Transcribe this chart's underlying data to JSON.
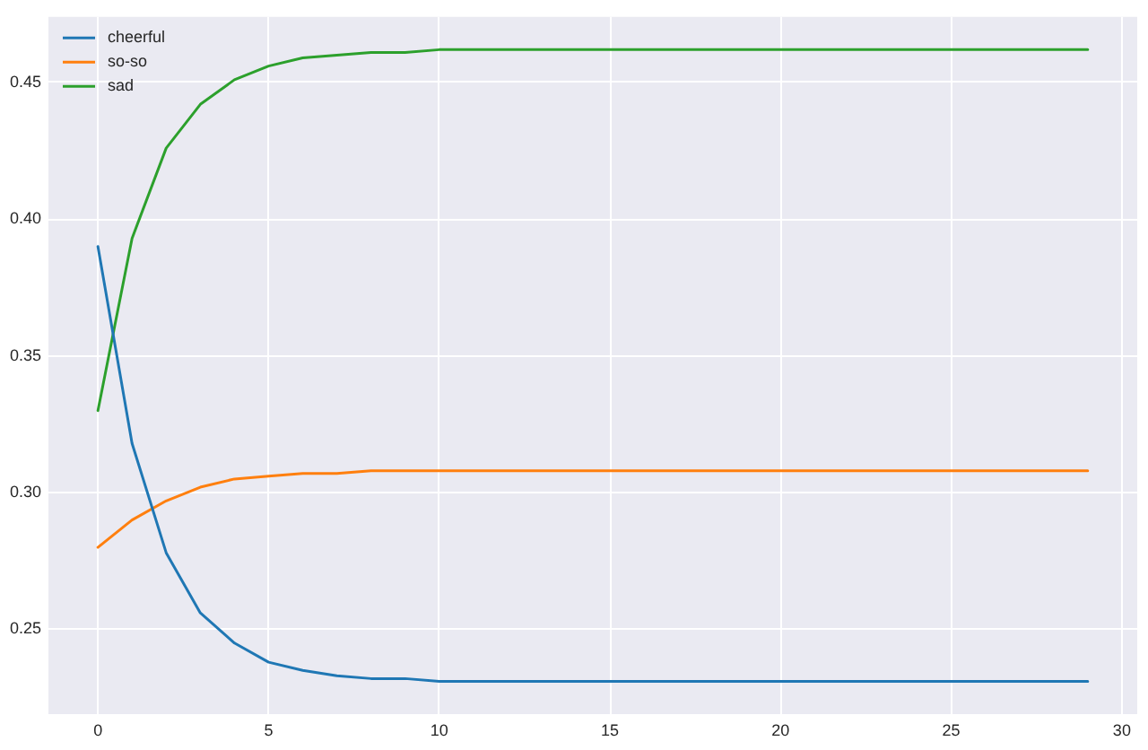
{
  "chart_data": {
    "type": "line",
    "x": [
      0,
      1,
      2,
      3,
      4,
      5,
      6,
      7,
      8,
      9,
      10,
      11,
      12,
      13,
      14,
      15,
      16,
      17,
      18,
      19,
      20,
      21,
      22,
      23,
      24,
      25,
      26,
      27,
      28,
      29
    ],
    "xlim": [
      -1.45,
      30.45
    ],
    "xticks": [
      0,
      5,
      10,
      15,
      20,
      25,
      30
    ],
    "ylim": [
      0.219,
      0.474
    ],
    "yticks": [
      0.25,
      {
        "value": 0.3,
        "label": "0.30"
      },
      0.35,
      {
        "value": 0.4,
        "label": "0.40"
      },
      0.45
    ],
    "grid": true,
    "legend": "top left",
    "marker": "none",
    "line_style": "solid",
    "series": [
      {
        "name": "cheerful",
        "color": "#1f77b4",
        "values": [
          0.39,
          0.318,
          0.278,
          0.256,
          0.245,
          0.238,
          0.235,
          0.233,
          0.232,
          0.232,
          0.231,
          0.231,
          0.231,
          0.231,
          0.231,
          0.231,
          0.231,
          0.231,
          0.231,
          0.231,
          0.231,
          0.231,
          0.231,
          0.231,
          0.231,
          0.231,
          0.231,
          0.231,
          0.231,
          0.231
        ]
      },
      {
        "name": "so-so",
        "color": "#ff7f0e",
        "values": [
          0.28,
          0.29,
          0.297,
          0.302,
          0.305,
          0.306,
          0.307,
          0.307,
          0.308,
          0.308,
          0.308,
          0.308,
          0.308,
          0.308,
          0.308,
          0.308,
          0.308,
          0.308,
          0.308,
          0.308,
          0.308,
          0.308,
          0.308,
          0.308,
          0.308,
          0.308,
          0.308,
          0.308,
          0.308,
          0.308
        ]
      },
      {
        "name": "sad",
        "color": "#2ca02c",
        "values": [
          0.33,
          0.393,
          0.426,
          0.442,
          0.451,
          0.456,
          0.459,
          0.46,
          0.461,
          0.461,
          0.462,
          0.462,
          0.462,
          0.462,
          0.462,
          0.462,
          0.462,
          0.462,
          0.462,
          0.462,
          0.462,
          0.462,
          0.462,
          0.462,
          0.462,
          0.462,
          0.462,
          0.462,
          0.462,
          0.462
        ]
      }
    ]
  }
}
